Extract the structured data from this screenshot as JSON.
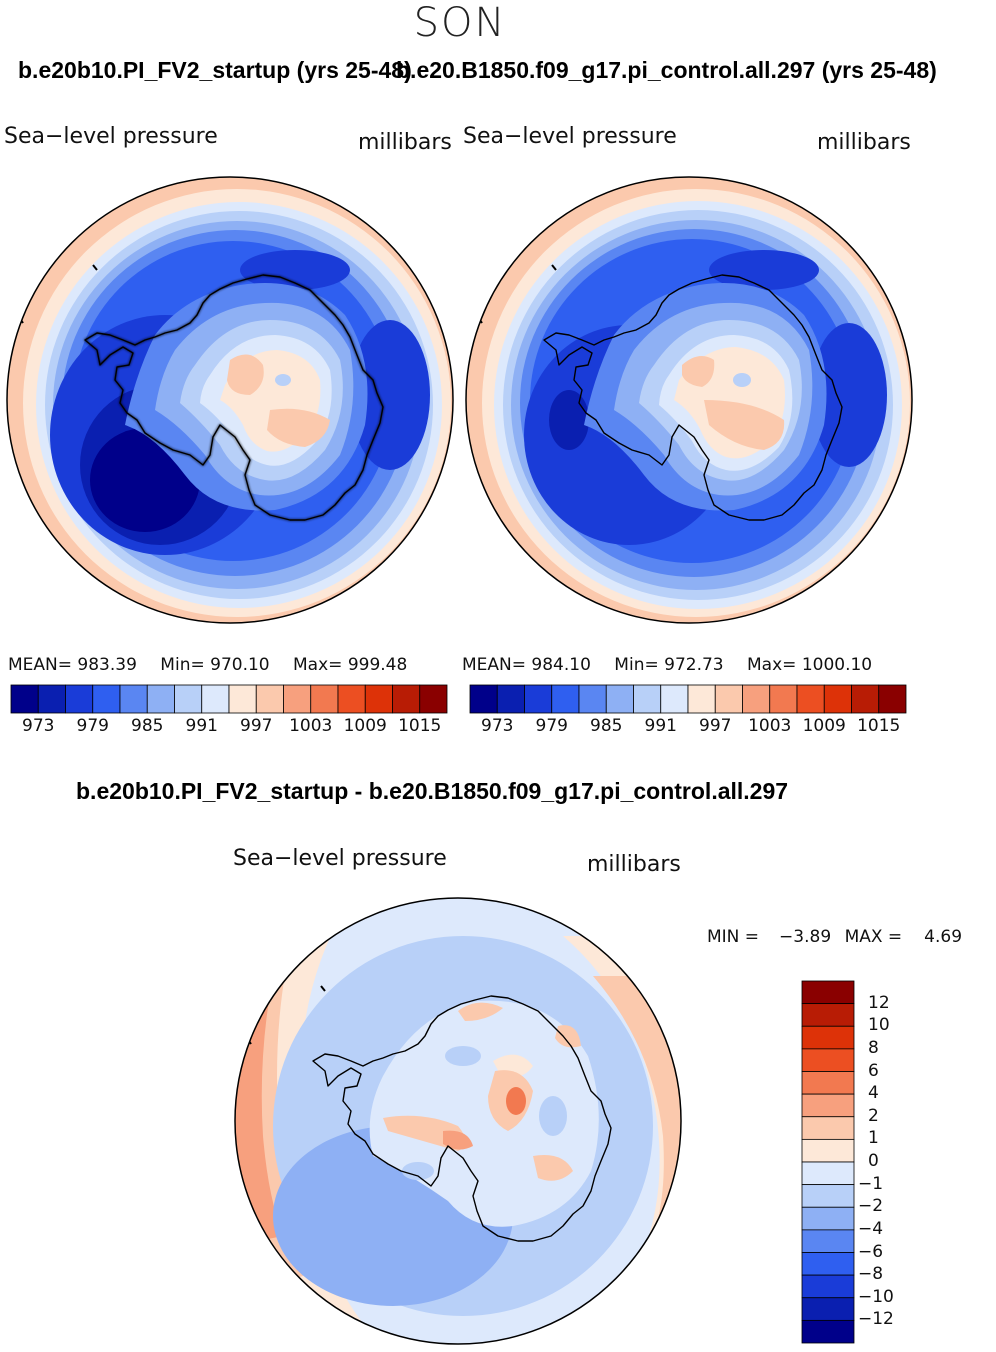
{
  "season": "SON",
  "panels": [
    {
      "case_title": "b.e20b10.PI_FV2_startup (yrs 25-48)",
      "variable": "Sea−level pressure",
      "units": "millibars",
      "stats": {
        "mean_label": "MEAN=",
        "mean": "983.39",
        "min_label": "Min=",
        "min": "970.10",
        "max_label": "Max=",
        "max": "999.48"
      }
    },
    {
      "case_title": "b.e20.B1850.f09_g17.pi_control.all.297 (yrs 25-48)",
      "variable": "Sea−level pressure",
      "units": "millibars",
      "stats": {
        "mean_label": "MEAN=",
        "mean": "984.10",
        "min_label": "Min=",
        "min": "972.73",
        "max_label": "Max=",
        "max": "1000.10"
      }
    }
  ],
  "diff": {
    "title": "b.e20b10.PI_FV2_startup - b.e20.B1850.f09_g17.pi_control.all.297",
    "variable": "Sea−level pressure",
    "units": "millibars",
    "minmax": {
      "min_label": "MIN =",
      "min": "−3.89",
      "max_label": "MAX =",
      "max": "4.69"
    }
  },
  "chart_data": [
    {
      "type": "heatmap",
      "projection": "south-polar-stereographic",
      "title": "b.e20b10.PI_FV2_startup (yrs 25-48)",
      "variable": "Sea-level pressure",
      "units": "millibars",
      "colorbar_ticks": [
        "973",
        "979",
        "985",
        "991",
        "997",
        "1003",
        "1009",
        "1015"
      ],
      "colorbar_levels": [
        970,
        973,
        976,
        979,
        982,
        985,
        988,
        991,
        994,
        997,
        1000,
        1003,
        1006,
        1009,
        1012,
        1015,
        1018
      ],
      "colors": [
        "#00008a",
        "#0a1fb0",
        "#1a3cd8",
        "#2f5ff0",
        "#5a86f2",
        "#8eb0f4",
        "#b8d0f8",
        "#dde9fc",
        "#fde8d8",
        "#fbc9ad",
        "#f7a07e",
        "#f27950",
        "#ec4f22",
        "#dd3208",
        "#b81c05",
        "#8a0000"
      ],
      "mean": 983.39,
      "min": 970.1,
      "max": 999.48
    },
    {
      "type": "heatmap",
      "projection": "south-polar-stereographic",
      "title": "b.e20.B1850.f09_g17.pi_control.all.297 (yrs 25-48)",
      "variable": "Sea-level pressure",
      "units": "millibars",
      "colorbar_ticks": [
        "973",
        "979",
        "985",
        "991",
        "997",
        "1003",
        "1009",
        "1015"
      ],
      "colors": [
        "#00008a",
        "#0a1fb0",
        "#1a3cd8",
        "#2f5ff0",
        "#5a86f2",
        "#8eb0f4",
        "#b8d0f8",
        "#dde9fc",
        "#fde8d8",
        "#fbc9ad",
        "#f7a07e",
        "#f27950",
        "#ec4f22",
        "#dd3208",
        "#b81c05",
        "#8a0000"
      ],
      "mean": 984.1,
      "min": 972.73,
      "max": 1000.1
    },
    {
      "type": "heatmap",
      "projection": "south-polar-stereographic",
      "title": "b.e20b10.PI_FV2_startup - b.e20.B1850.f09_g17.pi_control.all.297",
      "variable": "Sea-level pressure",
      "units": "millibars",
      "colorbar_ticks": [
        "12",
        "10",
        "8",
        "6",
        "4",
        "2",
        "1",
        "0",
        "−1",
        "−2",
        "−4",
        "−6",
        "−8",
        "−10",
        "−12"
      ],
      "colors": [
        "#8a0000",
        "#b81c05",
        "#dd3208",
        "#ec4f22",
        "#f27950",
        "#f7a07e",
        "#fbc9ad",
        "#fde8d8",
        "#dde9fc",
        "#b8d0f8",
        "#8eb0f4",
        "#5a86f2",
        "#2f5ff0",
        "#1a3cd8",
        "#0a1fb0",
        "#00008a"
      ],
      "min": -3.89,
      "max": 4.69
    }
  ]
}
